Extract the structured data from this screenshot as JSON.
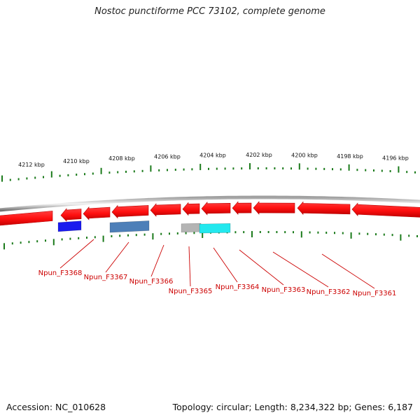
{
  "title": "Nostoc punctiforme PCC 73102, complete genome",
  "footer": {
    "accession": "Accession: NC_010628",
    "summary": "Topology: circular; Length: 8,234,322 bp; Genes: 6,187"
  },
  "kbp_labels": [
    "4212 kbp",
    "4210 kbp",
    "4208 kbp",
    "4206 kbp",
    "4204 kbp",
    "4202 kbp",
    "4200 kbp",
    "4198 kbp",
    "4196 kbp"
  ],
  "genes": [
    {
      "label": "Npun_F3368"
    },
    {
      "label": "Npun_F3367"
    },
    {
      "label": "Npun_F3366"
    },
    {
      "label": "Npun_F3365"
    },
    {
      "label": "Npun_F3364"
    },
    {
      "label": "Npun_F3363"
    },
    {
      "label": "Npun_F3362"
    },
    {
      "label": "Npun_F3361"
    }
  ],
  "colors": {
    "arrow_fill": "#ff1a1a",
    "arrow_dark": "#b80000",
    "backbone": "#8a8a8a",
    "tick": "#1a7a1a",
    "gene_label": "#cc0000",
    "bar_blue": "#1a1aee",
    "bar_steel": "#4d7fb8",
    "bar_gray": "#b4b4b4",
    "bar_cyan": "#22e8ee"
  }
}
